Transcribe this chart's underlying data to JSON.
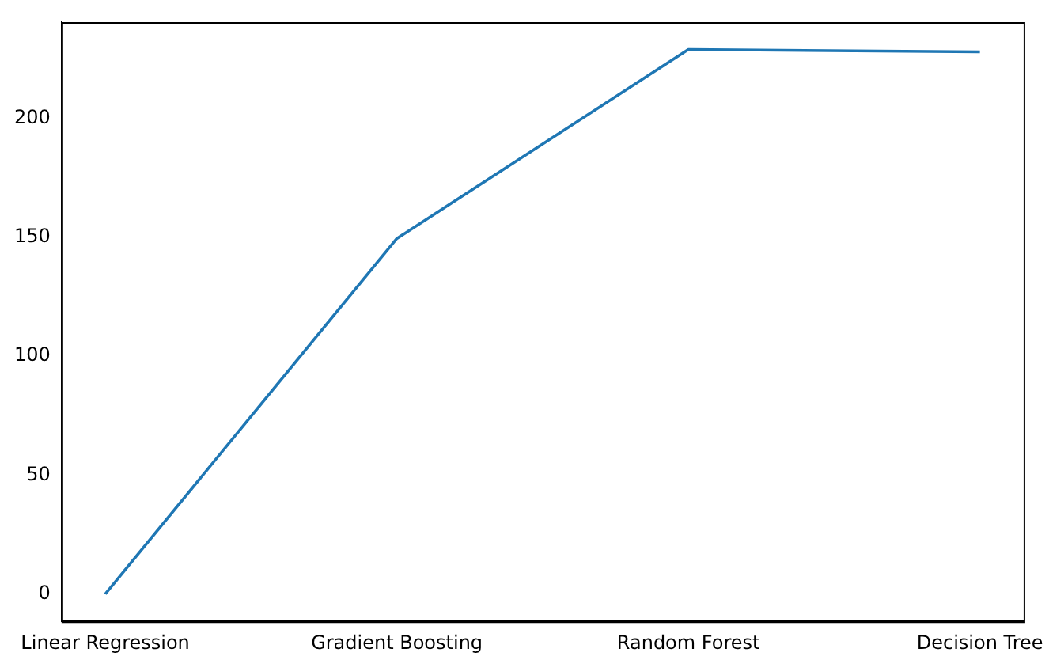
{
  "chart_data": {
    "type": "line",
    "categories": [
      "Linear Regression",
      "Gradient Boosting",
      "Random Forest",
      "Decision Tree"
    ],
    "series": [
      {
        "color": "#1f77b4",
        "values": [
          0,
          149.5,
          229,
          228
        ]
      }
    ],
    "ylim": [
      -11.5,
      240.5
    ],
    "yticks": [
      0,
      50,
      100,
      150,
      200
    ],
    "grid": false,
    "legend": false,
    "marker": "none",
    "line_style": "solid"
  }
}
